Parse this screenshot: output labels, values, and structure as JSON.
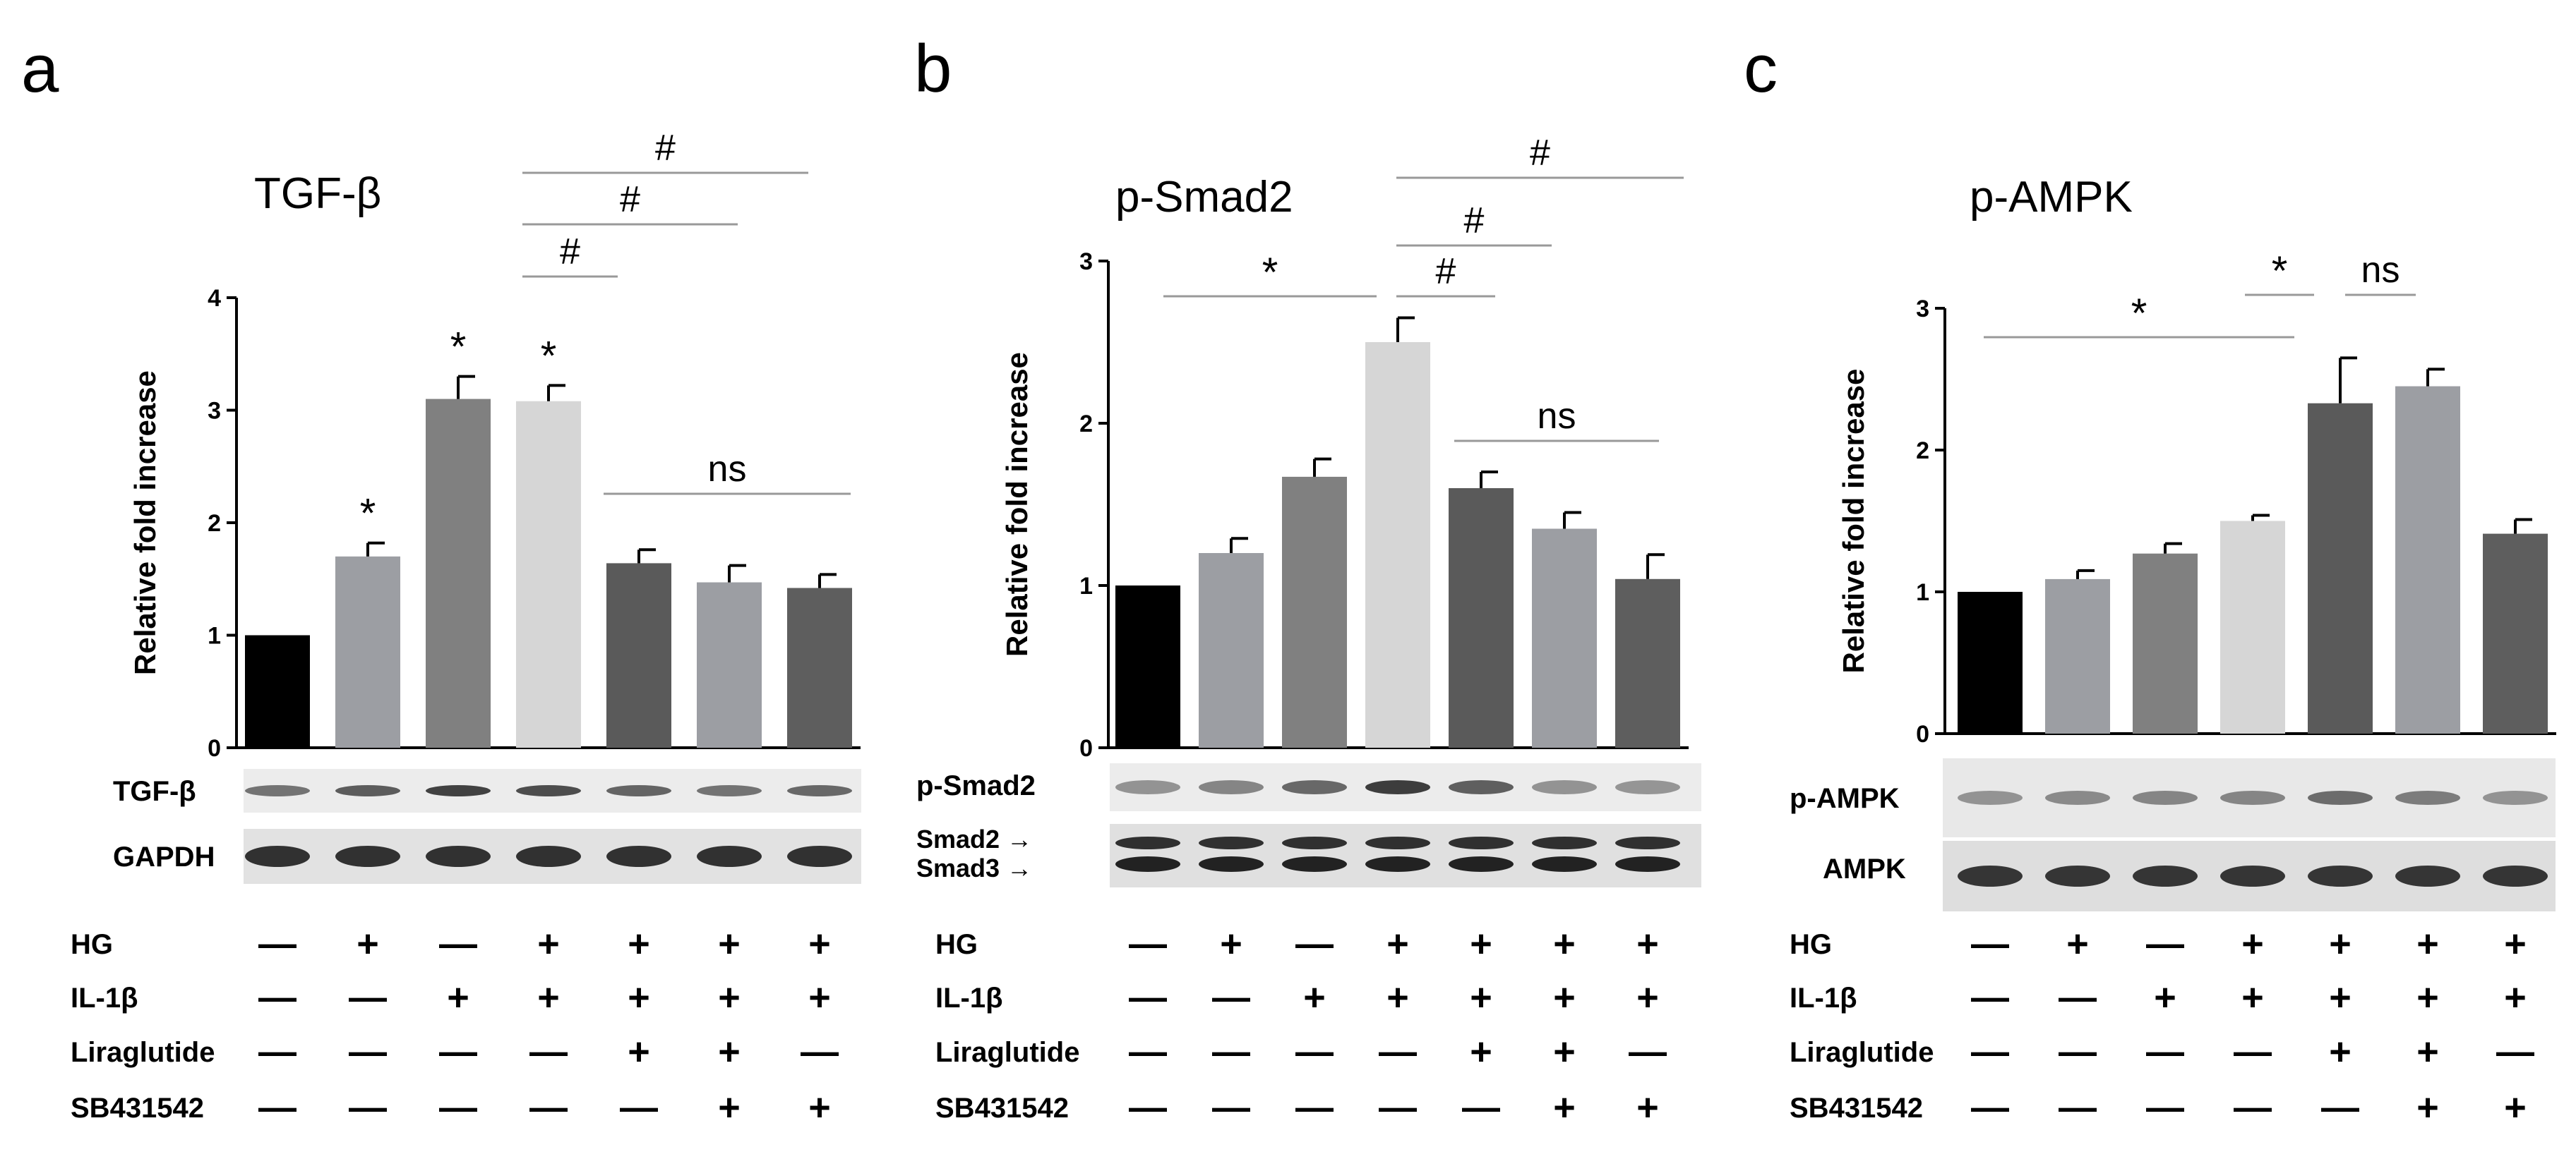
{
  "chart_data": [
    {
      "type": "bar",
      "panel": "a",
      "title": "TGF-β",
      "ylabel": "Relative fold increase",
      "ylim": [
        0,
        4
      ],
      "yticks": [
        0,
        1,
        2,
        3,
        4
      ],
      "series": [
        {
          "name": "TGF-β",
          "values": [
            1.0,
            1.7,
            3.1,
            3.08,
            1.64,
            1.47,
            1.42
          ],
          "errors": [
            0.0,
            0.12,
            0.2,
            0.14,
            0.12,
            0.15,
            0.12
          ],
          "colors": [
            "#000000",
            "#9c9ea3",
            "#808080",
            "#d6d6d6",
            "#5a5a5a",
            "#9c9ea3",
            "#5e5e5e"
          ]
        }
      ],
      "annotations": [
        {
          "type": "star",
          "bar": 1,
          "text": "*"
        },
        {
          "type": "star",
          "bar": 2,
          "text": "*"
        },
        {
          "type": "star",
          "bar": 3,
          "text": "*"
        },
        {
          "type": "bracket",
          "from": 3,
          "to": 4,
          "text": "#"
        },
        {
          "type": "bracket",
          "from": 3,
          "to": 5,
          "text": "#"
        },
        {
          "type": "bracket",
          "from": 3,
          "to": 6,
          "text": "#"
        },
        {
          "type": "bracket",
          "from": 4,
          "to": 6,
          "text": "ns"
        }
      ],
      "blots": [
        "TGF-β",
        "GAPDH"
      ]
    },
    {
      "type": "bar",
      "panel": "b",
      "title": "p-Smad2",
      "ylabel": "Relative fold increase",
      "ylim": [
        0,
        3
      ],
      "yticks": [
        0,
        1,
        2,
        3
      ],
      "series": [
        {
          "name": "p-Smad2",
          "values": [
            1.0,
            1.2,
            1.67,
            2.5,
            1.6,
            1.35,
            1.04
          ],
          "errors": [
            0.0,
            0.09,
            0.11,
            0.15,
            0.1,
            0.1,
            0.15
          ],
          "colors": [
            "#000000",
            "#9c9ea3",
            "#808080",
            "#d6d6d6",
            "#5a5a5a",
            "#9c9ea3",
            "#5e5e5e"
          ]
        }
      ],
      "annotations": [
        {
          "type": "bracket",
          "from": 0,
          "to": 3,
          "text": "*"
        },
        {
          "type": "bracket",
          "from": 3,
          "to": 4,
          "text": "#"
        },
        {
          "type": "bracket",
          "from": 3,
          "to": 5,
          "text": "#"
        },
        {
          "type": "bracket",
          "from": 3,
          "to": 6,
          "text": "#"
        },
        {
          "type": "bracket",
          "from": 4,
          "to": 6,
          "text": "ns"
        }
      ],
      "blots": [
        "p-Smad2",
        "Smad2 →",
        "Smad3 →"
      ]
    },
    {
      "type": "bar",
      "panel": "c",
      "title": "p-AMPK",
      "ylabel": "Relative fold increase",
      "ylim": [
        0,
        3
      ],
      "yticks": [
        0,
        1,
        2,
        3
      ],
      "series": [
        {
          "name": "p-AMPK",
          "values": [
            1.0,
            1.09,
            1.27,
            1.5,
            2.33,
            2.45,
            1.41
          ],
          "errors": [
            0.0,
            0.06,
            0.07,
            0.04,
            0.32,
            0.12,
            0.1
          ],
          "colors": [
            "#000000",
            "#9c9ea3",
            "#808080",
            "#d6d6d6",
            "#5a5a5a",
            "#9c9ea3",
            "#5e5e5e"
          ]
        }
      ],
      "annotations": [
        {
          "type": "bracket",
          "from": 0,
          "to": 4,
          "text": "*"
        },
        {
          "type": "bracket",
          "from": 3,
          "to": 4,
          "text": "*"
        },
        {
          "type": "bracket",
          "from": 4,
          "to": 5,
          "text": "ns"
        }
      ],
      "blots": [
        "p-AMPK",
        "AMPK"
      ]
    }
  ],
  "treatments": [
    {
      "name": "HG",
      "values": [
        "—",
        "+",
        "—",
        "+",
        "+",
        "+",
        "+"
      ]
    },
    {
      "name": "IL-1β",
      "values": [
        "—",
        "—",
        "+",
        "+",
        "+",
        "+",
        "+"
      ]
    },
    {
      "name": "Liraglutide",
      "values": [
        "—",
        "—",
        "—",
        "—",
        "+",
        "+",
        "—"
      ]
    },
    {
      "name": "SB431542",
      "values": [
        "—",
        "—",
        "—",
        "—",
        "—",
        "+",
        "+"
      ]
    }
  ]
}
